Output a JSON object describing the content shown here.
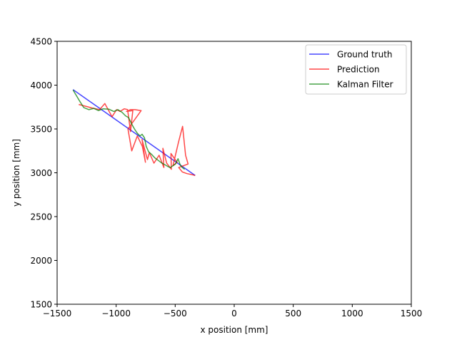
{
  "chart_data": {
    "type": "line",
    "xlabel": "x position [mm]",
    "ylabel": "y position [mm]",
    "xlim": [
      -1500,
      1500
    ],
    "ylim": [
      1500,
      4500
    ],
    "xticks": [
      -1500,
      -1000,
      -500,
      0,
      500,
      1000,
      1500
    ],
    "yticks": [
      1500,
      2000,
      2500,
      3000,
      3500,
      4000,
      4500
    ],
    "xtick_labels": [
      "−1500",
      "−1000",
      "−500",
      "0",
      "500",
      "1000",
      "1500"
    ],
    "ytick_labels": [
      "1500",
      "2000",
      "2500",
      "3000",
      "3500",
      "4000",
      "4500"
    ],
    "grid": false,
    "legend_position": "top-right",
    "series": [
      {
        "name": "Ground truth",
        "color": "#0000ff",
        "x": [
          -1365,
          -331
        ],
        "y": [
          3949,
          2969
        ]
      },
      {
        "name": "Prediction",
        "color": "#ff0000",
        "x": [
          -1317,
          -1261,
          -1206,
          -1140,
          -1096,
          -1035,
          -996,
          -968,
          -931,
          -903,
          -878,
          -859,
          -912,
          -880,
          -841,
          -788,
          -900,
          -868,
          -821,
          -778,
          -752,
          -781,
          -735,
          -719,
          -680,
          -636,
          -596,
          -604,
          -572,
          -532,
          -536,
          -505,
          -483,
          -519,
          -472,
          -437,
          -412,
          -391,
          -470,
          -440,
          -400,
          -360,
          -331
        ],
        "y": [
          3780,
          3760,
          3740,
          3720,
          3790,
          3640,
          3720,
          3700,
          3730,
          3720,
          3470,
          3710,
          3700,
          3720,
          3720,
          3710,
          3500,
          3250,
          3420,
          3300,
          3120,
          3380,
          3150,
          3230,
          3110,
          3200,
          3060,
          3280,
          3110,
          3040,
          3220,
          3160,
          3120,
          3080,
          3350,
          3530,
          3200,
          3100,
          3060,
          3010,
          2990,
          2980,
          2969
        ]
      },
      {
        "name": "Kalman Filter",
        "color": "#008000",
        "x": [
          -1365,
          -1310,
          -1275,
          -1230,
          -1190,
          -1150,
          -1110,
          -1060,
          -1020,
          -985,
          -950,
          -920,
          -895,
          -870,
          -845,
          -820,
          -798,
          -780,
          -760,
          -745,
          -725,
          -700,
          -672,
          -642,
          -612,
          -585,
          -560,
          -540,
          -520,
          -498,
          -476,
          -458,
          -440,
          -420
        ],
        "y": [
          3945,
          3820,
          3745,
          3720,
          3735,
          3710,
          3730,
          3725,
          3700,
          3720,
          3690,
          3650,
          3630,
          3560,
          3500,
          3450,
          3420,
          3440,
          3400,
          3300,
          3240,
          3210,
          3170,
          3140,
          3110,
          3090,
          3070,
          3060,
          3080,
          3100,
          3160,
          3090,
          3060,
          3040
        ]
      }
    ]
  }
}
